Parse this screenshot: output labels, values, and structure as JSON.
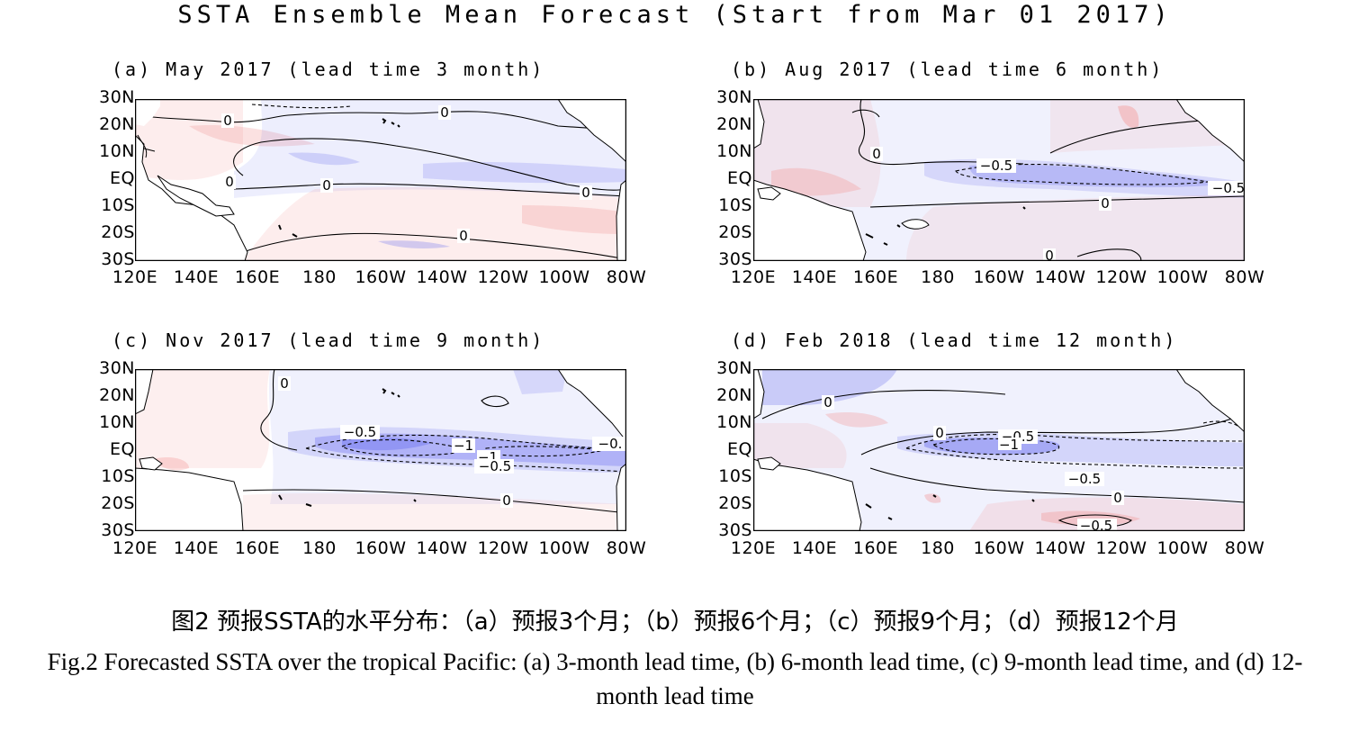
{
  "figure": {
    "main_title": "SSTA Ensemble Mean Forecast (Start from Mar 01 2017)",
    "lat_labels": [
      "30N",
      "20N",
      "10N",
      "EQ",
      "10S",
      "20S",
      "30S"
    ],
    "lon_labels": [
      "120E",
      "140E",
      "160E",
      "180",
      "160W",
      "140W",
      "120W",
      "100W",
      "80W"
    ],
    "panels": [
      {
        "id": "a",
        "title": "(a) May 2017 (lead time 3 month)",
        "contour_labels": [
          "0",
          "0",
          "0",
          "0",
          "0",
          "0"
        ]
      },
      {
        "id": "b",
        "title": "(b) Aug 2017 (lead time 6 month)",
        "contour_labels": [
          "0",
          "−0.5",
          "−0.5",
          "0",
          "0"
        ]
      },
      {
        "id": "c",
        "title": "(c) Nov 2017 (lead time 9 month)",
        "contour_labels": [
          "0",
          "−0.5",
          "−1",
          "−1",
          "−0.5",
          "−0.",
          "0"
        ]
      },
      {
        "id": "d",
        "title": "(d) Feb 2018 (lead time 12 month)",
        "contour_labels": [
          "0",
          "0",
          "−0.5",
          "−1",
          "−0.5",
          "0",
          "−0.5"
        ]
      }
    ]
  },
  "colors": {
    "negative": "#6f74f0",
    "positive": "#f39a9a",
    "line": "#000000"
  },
  "caption": {
    "chinese": "图2 预报SSTA的水平分布：（a）预报3个月；（b）预报6个月；（c）预报9个月；（d）预报12个月",
    "english": "Fig.2 Forecasted SSTA over the tropical Pacific: (a) 3-month lead time, (b) 6-month lead time, (c) 9-month lead time, and (d) 12-month lead time"
  }
}
